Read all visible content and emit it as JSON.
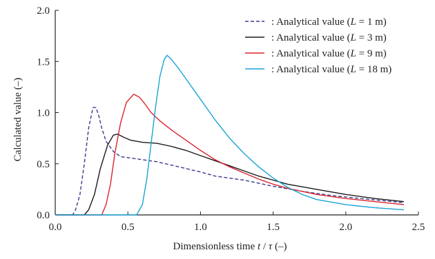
{
  "chart_data": {
    "type": "line",
    "xlabel_parts": [
      "Dimensionless time ",
      "t",
      " / ",
      "τ",
      " (–)"
    ],
    "ylabel": "Calculated value  (–)",
    "xlim": [
      0.0,
      2.5
    ],
    "ylim": [
      0.0,
      2.0
    ],
    "xticks": [
      "0.0",
      "0.5",
      "1.0",
      "1.5",
      "2.0",
      "2.5"
    ],
    "yticks": [
      "0.0",
      "0.5",
      "1.0",
      "1.5",
      "2.0"
    ],
    "grid": false,
    "legend_position": "top-right",
    "series": [
      {
        "name_parts": [
          ": Analytical value (",
          "L",
          " = 1 m)"
        ],
        "color": "#3a3a8c",
        "dash": "dashed",
        "points": [
          [
            0.0,
            0.0
          ],
          [
            0.12,
            0.0
          ],
          [
            0.14,
            0.05
          ],
          [
            0.17,
            0.2
          ],
          [
            0.2,
            0.5
          ],
          [
            0.23,
            0.85
          ],
          [
            0.26,
            1.05
          ],
          [
            0.28,
            1.05
          ],
          [
            0.3,
            0.97
          ],
          [
            0.32,
            0.85
          ],
          [
            0.35,
            0.72
          ],
          [
            0.4,
            0.62
          ],
          [
            0.45,
            0.57
          ],
          [
            0.55,
            0.55
          ],
          [
            0.7,
            0.52
          ],
          [
            0.85,
            0.47
          ],
          [
            1.0,
            0.42
          ],
          [
            1.1,
            0.38
          ],
          [
            1.3,
            0.34
          ],
          [
            1.5,
            0.28
          ],
          [
            1.7,
            0.23
          ],
          [
            1.9,
            0.19
          ],
          [
            2.1,
            0.16
          ],
          [
            2.4,
            0.12
          ]
        ]
      },
      {
        "name_parts": [
          ": Analytical value (",
          "L",
          " = 3 m)"
        ],
        "color": "#1a1a1a",
        "dash": "solid",
        "points": [
          [
            0.0,
            0.0
          ],
          [
            0.2,
            0.0
          ],
          [
            0.23,
            0.05
          ],
          [
            0.27,
            0.2
          ],
          [
            0.31,
            0.45
          ],
          [
            0.36,
            0.68
          ],
          [
            0.4,
            0.78
          ],
          [
            0.43,
            0.79
          ],
          [
            0.47,
            0.76
          ],
          [
            0.52,
            0.73
          ],
          [
            0.6,
            0.71
          ],
          [
            0.7,
            0.7
          ],
          [
            0.8,
            0.67
          ],
          [
            0.9,
            0.63
          ],
          [
            1.0,
            0.58
          ],
          [
            1.1,
            0.53
          ],
          [
            1.2,
            0.48
          ],
          [
            1.3,
            0.43
          ],
          [
            1.4,
            0.38
          ],
          [
            1.5,
            0.34
          ],
          [
            1.6,
            0.3
          ],
          [
            1.8,
            0.25
          ],
          [
            2.0,
            0.2
          ],
          [
            2.2,
            0.16
          ],
          [
            2.4,
            0.13
          ]
        ]
      },
      {
        "name_parts": [
          ": Analytical value (",
          "L",
          " = 9 m)"
        ],
        "color": "#d9232a",
        "dash": "solid",
        "points": [
          [
            0.0,
            0.0
          ],
          [
            0.32,
            0.0
          ],
          [
            0.35,
            0.1
          ],
          [
            0.38,
            0.3
          ],
          [
            0.41,
            0.6
          ],
          [
            0.45,
            0.9
          ],
          [
            0.49,
            1.1
          ],
          [
            0.54,
            1.18
          ],
          [
            0.58,
            1.15
          ],
          [
            0.62,
            1.08
          ],
          [
            0.66,
            1.0
          ],
          [
            0.72,
            0.92
          ],
          [
            0.8,
            0.83
          ],
          [
            0.9,
            0.73
          ],
          [
            1.0,
            0.63
          ],
          [
            1.1,
            0.54
          ],
          [
            1.2,
            0.47
          ],
          [
            1.3,
            0.41
          ],
          [
            1.4,
            0.35
          ],
          [
            1.5,
            0.3
          ],
          [
            1.6,
            0.26
          ],
          [
            1.8,
            0.2
          ],
          [
            2.0,
            0.16
          ],
          [
            2.2,
            0.13
          ],
          [
            2.4,
            0.1
          ]
        ]
      },
      {
        "name_parts": [
          ": Analytical value (",
          "L",
          " = 18 m)"
        ],
        "color": "#1aa3d6",
        "dash": "solid",
        "points": [
          [
            0.0,
            0.0
          ],
          [
            0.56,
            0.0
          ],
          [
            0.6,
            0.1
          ],
          [
            0.63,
            0.35
          ],
          [
            0.66,
            0.7
          ],
          [
            0.69,
            1.05
          ],
          [
            0.72,
            1.35
          ],
          [
            0.75,
            1.52
          ],
          [
            0.77,
            1.56
          ],
          [
            0.8,
            1.52
          ],
          [
            0.85,
            1.43
          ],
          [
            0.9,
            1.33
          ],
          [
            1.0,
            1.13
          ],
          [
            1.1,
            0.93
          ],
          [
            1.2,
            0.75
          ],
          [
            1.3,
            0.6
          ],
          [
            1.4,
            0.47
          ],
          [
            1.5,
            0.36
          ],
          [
            1.6,
            0.27
          ],
          [
            1.7,
            0.2
          ],
          [
            1.8,
            0.15
          ],
          [
            2.0,
            0.1
          ],
          [
            2.2,
            0.07
          ],
          [
            2.4,
            0.05
          ]
        ]
      }
    ]
  }
}
